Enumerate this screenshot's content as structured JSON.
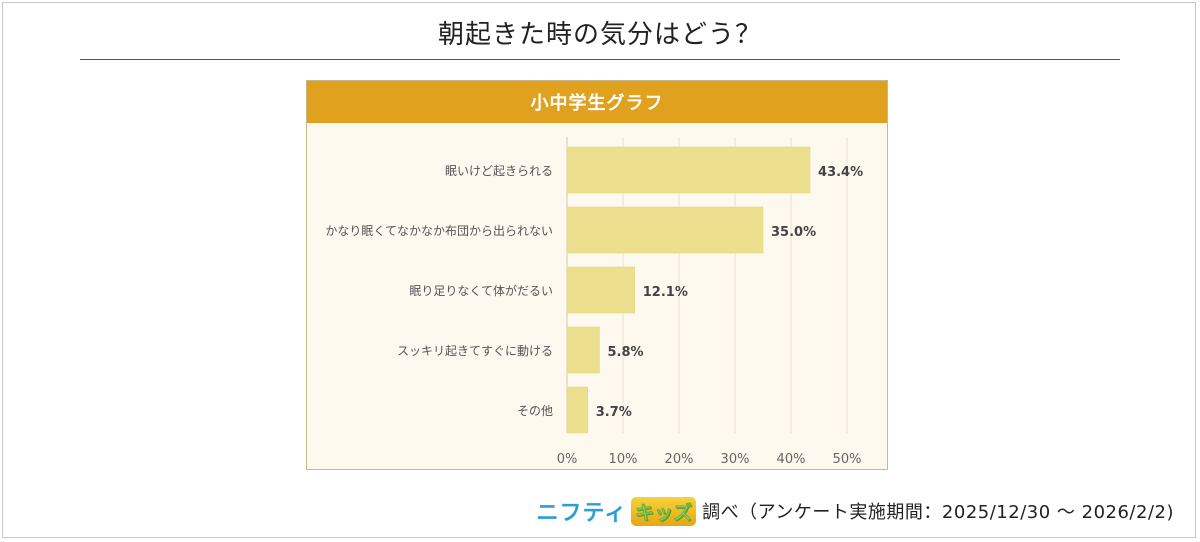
{
  "page": {
    "title": "朝起きた時の気分はどう？"
  },
  "panel": {
    "header": "小中学生グラフ"
  },
  "footer": {
    "brand_nifty": "ニフティ",
    "brand_kids": "キッズ",
    "note": "調べ（アンケート実施期間：2025/12/30 ～ 2026/2/2)"
  },
  "colors": {
    "header": "#e0a21e",
    "bar": "#ece08e",
    "panel_bg": "#fdf9ee",
    "grid": "#e6e1d2"
  },
  "chart_data": {
    "type": "bar",
    "orientation": "horizontal",
    "title": "小中学生グラフ",
    "categories": [
      "眠いけど起きられる",
      "かなり眠くてなかなか布団から出られない",
      "眠り足りなくて体がだるい",
      "スッキリ起きてすぐに動ける",
      "その他"
    ],
    "values": [
      43.4,
      35.0,
      12.1,
      5.8,
      3.7
    ],
    "value_labels": [
      "43.4%",
      "35.0%",
      "12.1%",
      "5.8%",
      "3.7%"
    ],
    "xlim": [
      0,
      50
    ],
    "x_ticks": [
      0,
      10,
      20,
      30,
      40,
      50
    ],
    "x_tick_labels": [
      "0%",
      "10%",
      "20%",
      "30%",
      "40%",
      "50%"
    ],
    "grid": true,
    "legend": "none"
  }
}
